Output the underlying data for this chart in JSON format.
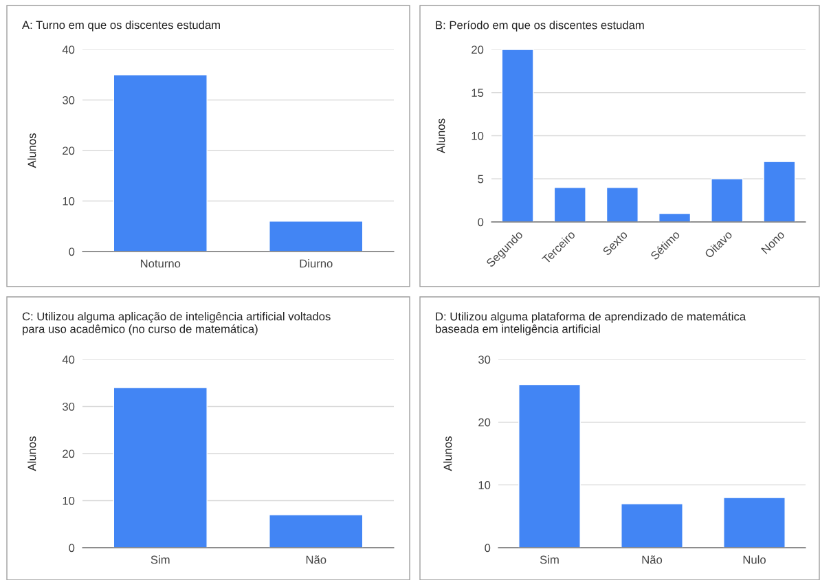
{
  "chart_data": [
    {
      "type": "bar",
      "title": "A: Turno em que os discentes estudam",
      "ylabel": "Alunos",
      "categories": [
        "Noturno",
        "Diurno"
      ],
      "values": [
        35,
        6
      ],
      "color": "#4285f4",
      "ylim": [
        0,
        40
      ],
      "yticks": [
        0,
        10,
        20,
        30,
        40
      ],
      "grid": "y"
    },
    {
      "type": "bar",
      "title": "B: Período em que os discentes estudam",
      "ylabel": "Alunos",
      "categories": [
        "Segundo",
        "Terceiro",
        "Sexto",
        "Sétimo",
        "Oitavo",
        "Nono"
      ],
      "values": [
        20,
        4,
        4,
        1,
        5,
        7
      ],
      "color": "#4285f4",
      "ylim": [
        0,
        20
      ],
      "yticks": [
        0,
        5,
        10,
        15,
        20
      ],
      "grid": "y"
    },
    {
      "type": "bar",
      "title": "C: Utilizou alguma aplicação de inteligência artificial voltados\npara uso acadêmico (no curso de matemática)",
      "ylabel": "Alunos",
      "categories": [
        "Sim",
        "Não"
      ],
      "values": [
        34,
        7
      ],
      "color": "#4285f4",
      "ylim": [
        0,
        40
      ],
      "yticks": [
        0,
        10,
        20,
        30,
        40
      ],
      "grid": "y"
    },
    {
      "type": "bar",
      "title": "D: Utilizou alguma plataforma de aprendizado de matemática\nbaseada em inteligência artificial",
      "ylabel": "Alunos",
      "categories": [
        "Sim",
        "Não",
        "Nulo"
      ],
      "values": [
        26,
        7,
        8
      ],
      "color": "#4285f4",
      "ylim": [
        0,
        30
      ],
      "yticks": [
        0,
        10,
        20,
        30
      ],
      "grid": "y"
    }
  ]
}
